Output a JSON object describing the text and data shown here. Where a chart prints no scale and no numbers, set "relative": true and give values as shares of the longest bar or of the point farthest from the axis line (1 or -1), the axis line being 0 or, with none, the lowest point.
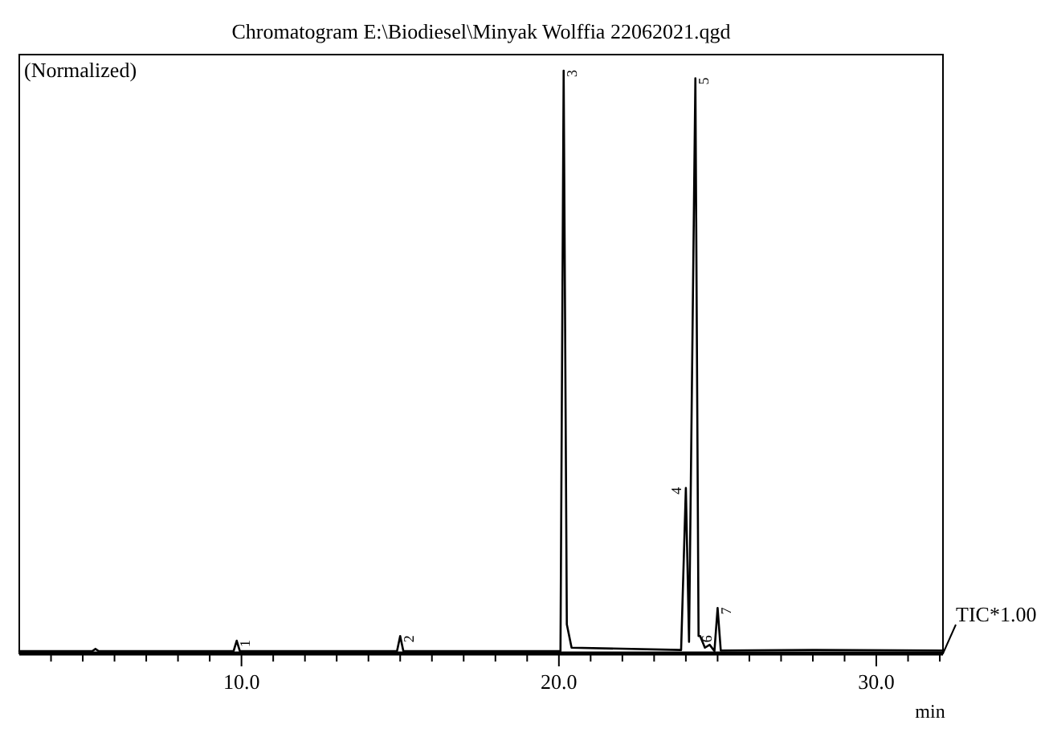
{
  "chart_data": {
    "type": "line",
    "title": "Chromatogram  E:\\Biodiesel\\Minyak Wolffia 22062021.qgd",
    "xlabel": "min",
    "relative": true,
    "grid": false,
    "xlim": [
      3.0,
      32.1
    ],
    "xticks": [
      {
        "value": 4,
        "label": null
      },
      {
        "value": 5,
        "label": null
      },
      {
        "value": 6,
        "label": null
      },
      {
        "value": 7,
        "label": null
      },
      {
        "value": 8,
        "label": null
      },
      {
        "value": 9,
        "label": null
      },
      {
        "value": 10,
        "label": "10.0"
      },
      {
        "value": 11,
        "label": null
      },
      {
        "value": 12,
        "label": null
      },
      {
        "value": 13,
        "label": null
      },
      {
        "value": 14,
        "label": null
      },
      {
        "value": 15,
        "label": null
      },
      {
        "value": 16,
        "label": null
      },
      {
        "value": 17,
        "label": null
      },
      {
        "value": 18,
        "label": null
      },
      {
        "value": 19,
        "label": null
      },
      {
        "value": 20,
        "label": "20.0"
      },
      {
        "value": 21,
        "label": null
      },
      {
        "value": 22,
        "label": null
      },
      {
        "value": 23,
        "label": null
      },
      {
        "value": 24,
        "label": null
      },
      {
        "value": 25,
        "label": null
      },
      {
        "value": 26,
        "label": null
      },
      {
        "value": 27,
        "label": null
      },
      {
        "value": 28,
        "label": null
      },
      {
        "value": 29,
        "label": null
      },
      {
        "value": 30,
        "label": "30.0"
      },
      {
        "value": 31,
        "label": null
      },
      {
        "value": 32,
        "label": null
      }
    ],
    "series": [
      {
        "color": "#000000",
        "x": [
          3.0,
          5.3,
          5.4,
          5.5,
          9.75,
          9.85,
          9.95,
          14.9,
          15.0,
          15.1,
          20.05,
          20.15,
          20.25,
          20.4,
          23.85,
          24.0,
          24.1,
          24.3,
          24.4,
          24.45,
          24.6,
          24.75,
          24.9,
          25.0,
          25.1,
          28.0,
          32.1
        ],
        "values": [
          0.004,
          0.004,
          0.008,
          0.004,
          0.004,
          0.022,
          0.004,
          0.004,
          0.03,
          0.004,
          0.004,
          1.0,
          0.05,
          0.01,
          0.006,
          0.284,
          0.02,
          0.987,
          0.03,
          0.03,
          0.01,
          0.015,
          0.004,
          0.078,
          0.005,
          0.006,
          0.005
        ]
      }
    ],
    "annotations": [
      "(Normalized)",
      "TIC*1.00",
      {
        "text": "1",
        "x": 9.85,
        "y": 0.022
      },
      {
        "text": "2",
        "x": 15.0,
        "y": 0.03
      },
      {
        "text": "3",
        "x": 20.15,
        "y": 1.0
      },
      {
        "text": "4",
        "x": 24.0,
        "y": 0.284
      },
      {
        "text": "5",
        "x": 24.3,
        "y": 0.987
      },
      {
        "text": "6",
        "x": 24.4,
        "y": 0.03
      },
      {
        "text": "7",
        "x": 25.0,
        "y": 0.078
      }
    ]
  }
}
